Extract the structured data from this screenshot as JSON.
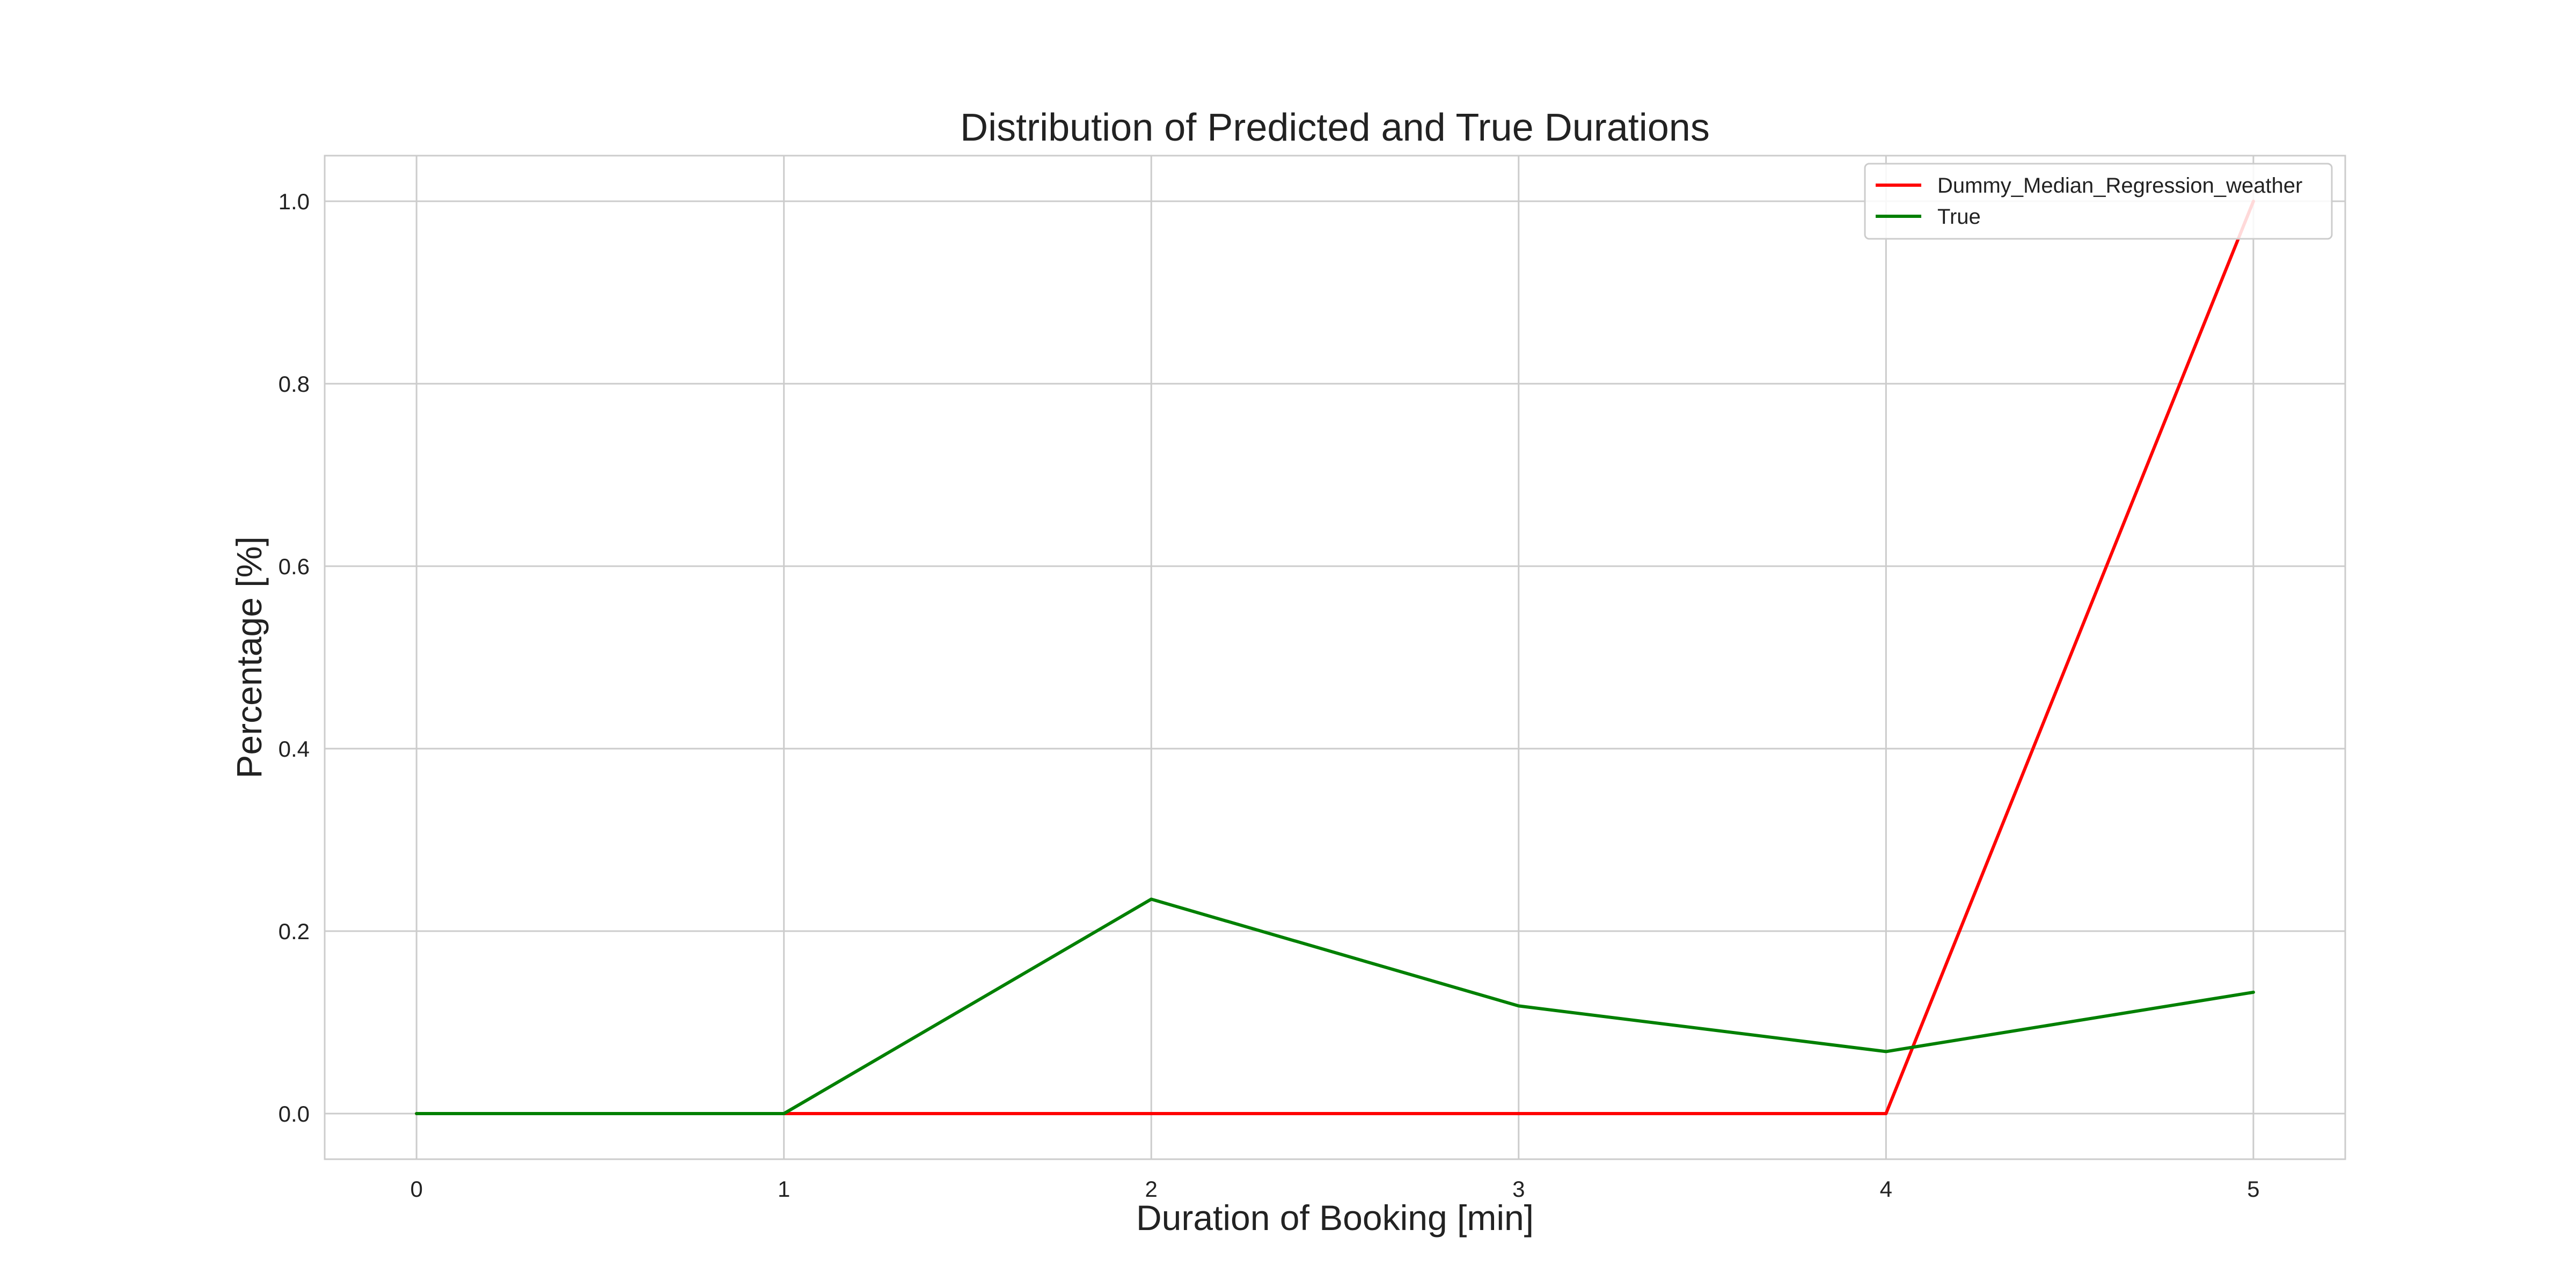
{
  "chart_data": {
    "type": "line",
    "title": "Distribution of Predicted and True Durations",
    "xlabel": "Duration of Booking [min]",
    "ylabel": "Percentage [%]",
    "x": [
      0,
      1,
      2,
      3,
      4,
      5
    ],
    "x_ticks": [
      "0",
      "1",
      "2",
      "3",
      "4",
      "5"
    ],
    "y_ticks": [
      "0.0",
      "0.2",
      "0.4",
      "0.6",
      "0.8",
      "1.0"
    ],
    "xlim": [
      -0.25,
      5.25
    ],
    "ylim": [
      -0.05,
      1.05
    ],
    "grid": true,
    "legend_position": "top-right",
    "series": [
      {
        "name": "Dummy_Median_Regression_weather",
        "color": "#ff0000",
        "values": [
          0,
          0,
          0,
          0,
          0,
          1.0
        ]
      },
      {
        "name": "True",
        "color": "#008000",
        "values": [
          0,
          0,
          0.235,
          0.118,
          0.068,
          0.133
        ]
      }
    ]
  }
}
